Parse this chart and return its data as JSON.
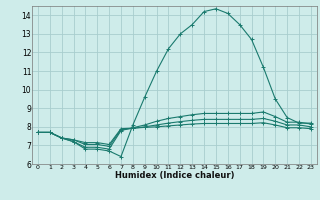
{
  "xlabel": "Humidex (Indice chaleur)",
  "xlim": [
    -0.5,
    23.5
  ],
  "ylim": [
    6,
    14.5
  ],
  "yticks": [
    6,
    7,
    8,
    9,
    10,
    11,
    12,
    13,
    14
  ],
  "xticks": [
    0,
    1,
    2,
    3,
    4,
    5,
    6,
    7,
    8,
    9,
    10,
    11,
    12,
    13,
    14,
    15,
    16,
    17,
    18,
    19,
    20,
    21,
    22,
    23
  ],
  "bg_color": "#ceecea",
  "grid_color": "#a8cece",
  "line_color": "#1a7a6e",
  "series": [
    {
      "x": [
        0,
        1,
        2,
        3,
        4,
        5,
        6,
        7,
        8,
        9,
        10,
        11,
        12,
        13,
        14,
        15,
        16,
        17,
        18,
        19,
        20,
        21,
        22,
        23
      ],
      "y": [
        7.7,
        7.7,
        7.4,
        7.2,
        6.8,
        6.8,
        6.7,
        6.4,
        8.1,
        9.6,
        11.0,
        12.2,
        13.0,
        13.5,
        14.2,
        14.35,
        14.1,
        13.5,
        12.7,
        11.2,
        9.5,
        8.5,
        8.2,
        8.2
      ]
    },
    {
      "x": [
        0,
        1,
        2,
        3,
        4,
        5,
        6,
        7,
        8,
        9,
        10,
        11,
        12,
        13,
        14,
        15,
        16,
        17,
        18,
        19,
        20,
        21,
        22,
        23
      ],
      "y": [
        7.7,
        7.7,
        7.4,
        7.2,
        6.9,
        6.9,
        6.8,
        7.8,
        7.95,
        8.1,
        8.3,
        8.45,
        8.55,
        8.65,
        8.72,
        8.72,
        8.72,
        8.72,
        8.72,
        8.8,
        8.55,
        8.25,
        8.25,
        8.15
      ]
    },
    {
      "x": [
        0,
        1,
        2,
        3,
        4,
        5,
        6,
        7,
        8,
        9,
        10,
        11,
        12,
        13,
        14,
        15,
        16,
        17,
        18,
        19,
        20,
        21,
        22,
        23
      ],
      "y": [
        7.7,
        7.7,
        7.4,
        7.3,
        7.05,
        7.05,
        6.95,
        7.85,
        7.92,
        8.0,
        8.1,
        8.2,
        8.28,
        8.35,
        8.4,
        8.4,
        8.4,
        8.4,
        8.4,
        8.45,
        8.3,
        8.1,
        8.1,
        8.0
      ]
    },
    {
      "x": [
        0,
        1,
        2,
        3,
        4,
        5,
        6,
        7,
        8,
        9,
        10,
        11,
        12,
        13,
        14,
        15,
        16,
        17,
        18,
        19,
        20,
        21,
        22,
        23
      ],
      "y": [
        7.7,
        7.7,
        7.4,
        7.3,
        7.15,
        7.15,
        7.05,
        7.9,
        7.93,
        7.97,
        8.0,
        8.05,
        8.1,
        8.15,
        8.18,
        8.18,
        8.18,
        8.18,
        8.18,
        8.22,
        8.1,
        7.95,
        7.95,
        7.9
      ]
    }
  ]
}
